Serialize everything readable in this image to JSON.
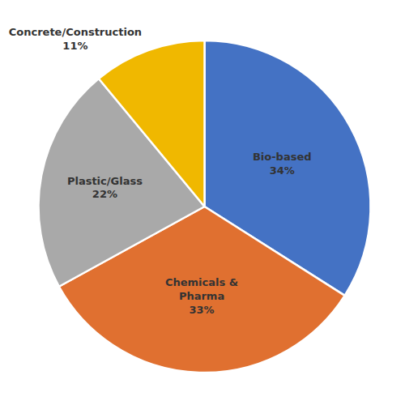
{
  "chart_data": {
    "type": "pie",
    "categories": [
      "Bio-based",
      "Chemicals &\nPharma",
      "Plastic/Glass",
      "Concrete/Construction"
    ],
    "values": [
      34,
      33,
      22,
      11
    ],
    "value_labels": [
      "34%",
      "33%",
      "22%",
      "11%"
    ],
    "colors": [
      "#4472C4",
      "#E07030",
      "#A9A9A9",
      "#F0B800"
    ],
    "data_labels": true
  }
}
